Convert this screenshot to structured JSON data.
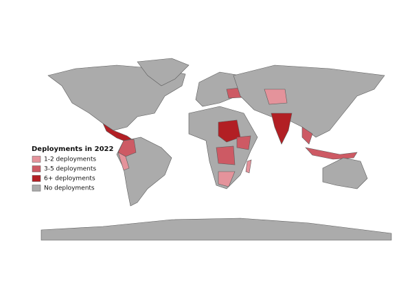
{
  "map": {
    "legend": {
      "title": "Deployments in 2022",
      "items": [
        {
          "label": "1-2 deployments",
          "color": "#e4939b"
        },
        {
          "label": "3-5 deployments",
          "color": "#cd5a64"
        },
        {
          "label": "6+ deployments",
          "color": "#b21f24"
        },
        {
          "label": "No deployments",
          "color": "#ababab"
        }
      ]
    }
  }
}
